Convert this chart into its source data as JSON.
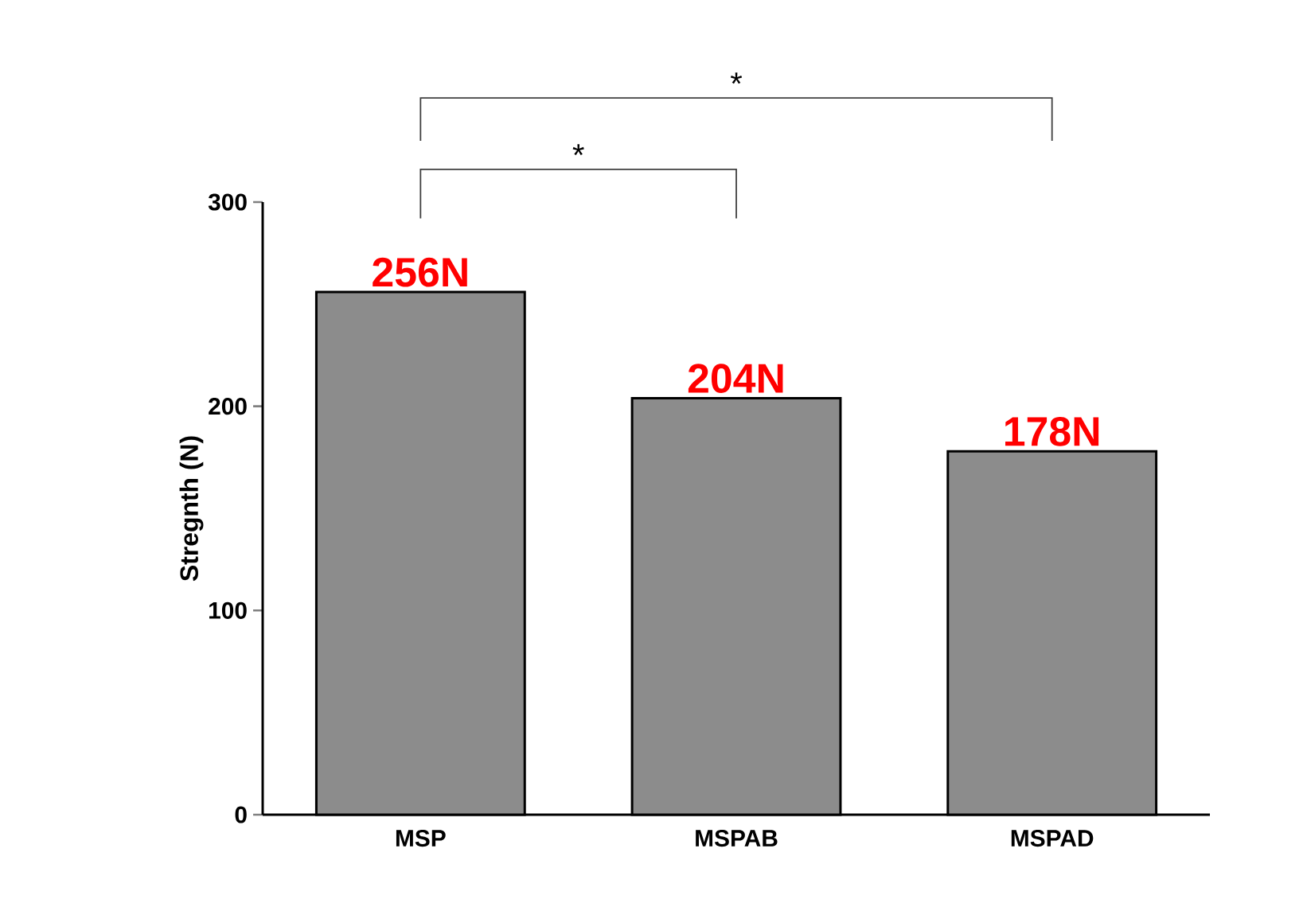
{
  "chart_data": {
    "type": "bar",
    "ylabel": "Stregnth (N)",
    "categories": [
      "MSP",
      "MSPAB",
      "MSPAD"
    ],
    "values": [
      256,
      204,
      178
    ],
    "value_labels": [
      "256N",
      "204N",
      "178N"
    ],
    "color": "#8c8c8c",
    "ylim": [
      0,
      300
    ],
    "yticks": [
      0,
      100,
      200,
      300
    ],
    "grid": false,
    "annotations": [
      "*",
      "*"
    ]
  }
}
